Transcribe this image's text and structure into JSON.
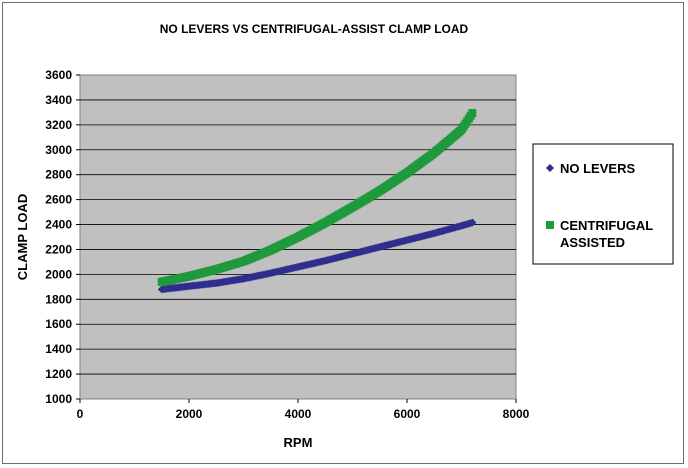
{
  "chart_data": {
    "type": "scatter",
    "title": "NO LEVERS VS CENTRIFUGAL-ASSIST CLAMP LOAD",
    "xlabel": "RPM",
    "ylabel": "CLAMP LOAD",
    "xlim": [
      0,
      8000
    ],
    "ylim": [
      1000,
      3600
    ],
    "x_ticks": [
      "0",
      "2000",
      "4000",
      "6000",
      "8000"
    ],
    "y_ticks": [
      "1000",
      "1200",
      "1400",
      "1600",
      "1800",
      "2000",
      "2200",
      "2400",
      "2600",
      "2800",
      "3000",
      "3200",
      "3400",
      "3600"
    ],
    "grid": "horizontal",
    "plot_background": "#c0c0c0",
    "legend_position": "right",
    "series": [
      {
        "name": "NO LEVERS",
        "color": "#2e2e8e",
        "marker": "diamond",
        "x": [
          1500,
          2000,
          2500,
          3000,
          3500,
          4000,
          4500,
          5000,
          5500,
          6000,
          6500,
          7000,
          7200
        ],
        "y": [
          1880,
          1905,
          1930,
          1965,
          2010,
          2060,
          2110,
          2165,
          2220,
          2275,
          2330,
          2390,
          2415
        ]
      },
      {
        "name": "CENTRIFUGAL ASSISTED",
        "legend_lines": [
          "CENTRIFUGAL",
          "ASSISTED"
        ],
        "color": "#1e9a3c",
        "marker": "square",
        "x": [
          1500,
          2000,
          2500,
          3000,
          3500,
          4000,
          4500,
          5000,
          5500,
          6000,
          6500,
          7000,
          7200
        ],
        "y": [
          1940,
          1985,
          2040,
          2105,
          2195,
          2300,
          2415,
          2540,
          2670,
          2815,
          2975,
          3160,
          3295
        ]
      }
    ]
  }
}
